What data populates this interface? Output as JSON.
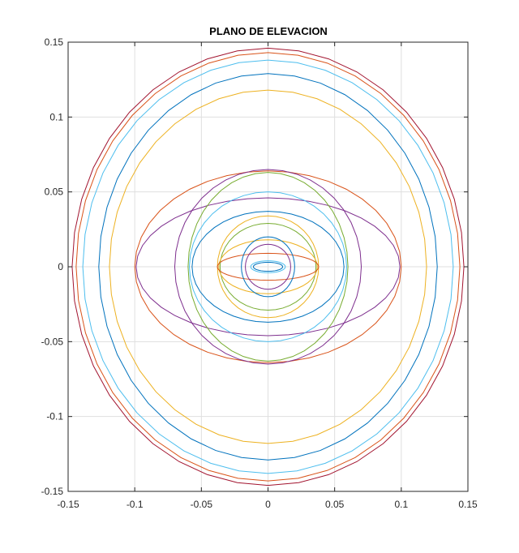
{
  "chart_data": {
    "type": "line",
    "title": "PLANO DE ELEVACION",
    "xlabel": "",
    "ylabel": "",
    "xlim": [
      -0.15,
      0.15
    ],
    "ylim": [
      -0.15,
      0.15
    ],
    "xticks": [
      -0.15,
      -0.1,
      -0.05,
      0,
      0.05,
      0.1,
      0.15
    ],
    "yticks": [
      -0.15,
      -0.1,
      -0.05,
      0,
      0.05,
      0.1,
      0.15
    ],
    "xtick_labels": [
      "-0.15",
      "-0.1",
      "-0.05",
      "0",
      "0.05",
      "0.1",
      "0.15"
    ],
    "ytick_labels": [
      "-0.15",
      "-0.1",
      "-0.05",
      "0",
      "0.05",
      "0.1",
      "0.15"
    ],
    "grid": true,
    "series": [
      {
        "color": "#A2142F",
        "rx": 0.147,
        "ry": 0.146
      },
      {
        "color": "#D95319",
        "rx": 0.144,
        "ry": 0.143
      },
      {
        "color": "#4DBEEE",
        "rx": 0.139,
        "ry": 0.138
      },
      {
        "color": "#0072BD",
        "rx": 0.127,
        "ry": 0.129
      },
      {
        "color": "#D95319",
        "rx": 0.1,
        "ry": 0.064
      },
      {
        "color": "#7E2F8E",
        "rx": 0.099,
        "ry": 0.046
      },
      {
        "color": "#7E2F8E",
        "rx": 0.07,
        "ry": 0.065
      },
      {
        "color": "#77AC30",
        "rx": 0.06,
        "ry": 0.063
      },
      {
        "color": "#4DBEEE",
        "rx": 0.059,
        "ry": 0.05
      },
      {
        "color": "#0072BD",
        "rx": 0.057,
        "ry": 0.037
      },
      {
        "color": "#EDB120",
        "rx": 0.038,
        "ry": 0.034
      },
      {
        "color": "#77AC30",
        "rx": 0.036,
        "ry": 0.029
      },
      {
        "color": "#EDB120",
        "rx": 0.037,
        "ry": 0.018
      },
      {
        "color": "#D95319",
        "rx": 0.038,
        "ry": 0.009
      },
      {
        "color": "#0072BD",
        "rx": 0.02,
        "ry": 0.02
      },
      {
        "color": "#7E2F8E",
        "rx": 0.017,
        "ry": 0.015
      },
      {
        "color": "#4DBEEE",
        "rx": 0.013,
        "ry": 0.004
      },
      {
        "color": "#0072BD",
        "rx": 0.011,
        "ry": 0.003
      },
      {
        "color": "#EDB120",
        "rx": 0.119,
        "ry": 0.118
      }
    ]
  }
}
